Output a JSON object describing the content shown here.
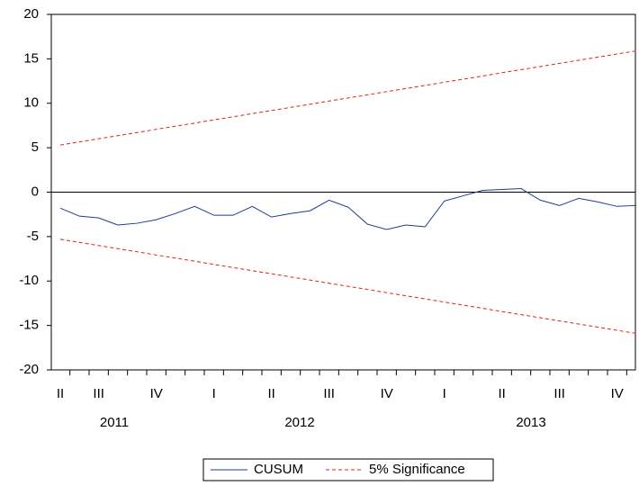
{
  "chart_data": {
    "type": "line",
    "categories": [
      "II",
      null,
      "III",
      null,
      null,
      "IV",
      null,
      null,
      "I",
      null,
      null,
      "II",
      null,
      null,
      "III",
      null,
      null,
      "IV",
      null,
      null,
      "I",
      null,
      null,
      "II",
      null,
      null,
      "III",
      null,
      null,
      "IV",
      null
    ],
    "years": [
      "2011",
      "2012",
      "2013"
    ],
    "series": [
      {
        "name": "CUSUM",
        "color": "#1f3a8f",
        "values": [
          -1.8,
          -2.7,
          -2.9,
          -3.7,
          -3.5,
          -3.1,
          -2.4,
          -1.6,
          -2.6,
          -2.6,
          -1.6,
          -2.8,
          -2.4,
          -2.1,
          -0.9,
          -1.7,
          -3.6,
          -4.2,
          -3.7,
          -3.9,
          -1.0,
          -0.4,
          0.2,
          0.3,
          0.4,
          -0.9,
          -1.5,
          -0.7,
          -1.1,
          -1.6,
          -1.5
        ]
      }
    ],
    "band": {
      "name": "5% Significance",
      "color": "#e0201b",
      "upper": [
        5.3,
        5.65,
        6.01,
        6.36,
        6.71,
        7.07,
        7.42,
        7.77,
        8.13,
        8.48,
        8.83,
        9.19,
        9.54,
        9.89,
        10.25,
        10.6,
        10.95,
        11.31,
        11.66,
        12.01,
        12.37,
        12.72,
        13.07,
        13.43,
        13.78,
        14.13,
        14.49,
        14.84,
        15.19,
        15.55,
        15.9
      ],
      "lower": [
        -5.3,
        -5.65,
        -6.01,
        -6.36,
        -6.71,
        -7.07,
        -7.42,
        -7.77,
        -8.13,
        -8.48,
        -8.83,
        -9.19,
        -9.54,
        -9.89,
        -10.25,
        -10.6,
        -10.95,
        -11.31,
        -11.66,
        -12.01,
        -12.37,
        -12.72,
        -13.07,
        -13.43,
        -13.78,
        -14.13,
        -14.49,
        -14.84,
        -15.19,
        -15.55,
        -15.9
      ]
    },
    "hline": 0,
    "ylim": [
      -20,
      20
    ],
    "yticks": [
      -20,
      -15,
      -10,
      -5,
      0,
      5,
      10,
      15,
      20
    ]
  }
}
